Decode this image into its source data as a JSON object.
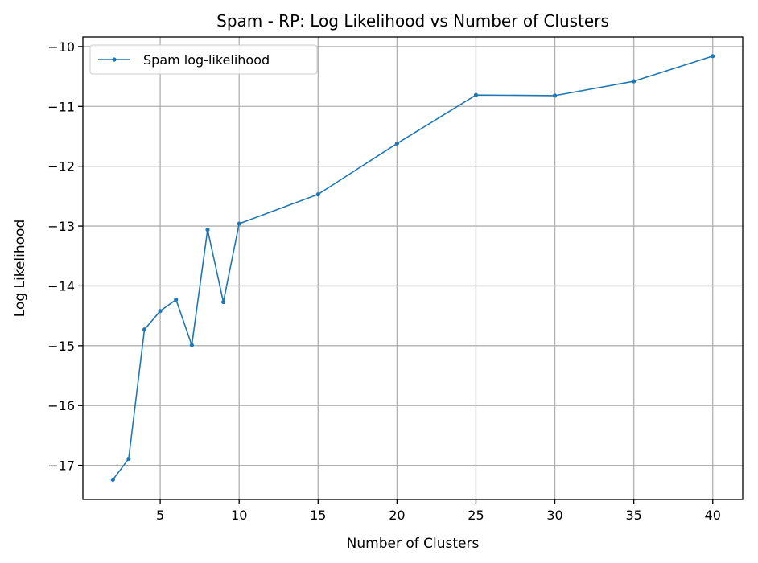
{
  "chart_data": {
    "type": "line",
    "title": "Spam - RP: Log Likelihood vs Number of Clusters",
    "xlabel": "Number of Clusters",
    "ylabel": "Log Likelihood",
    "xlim": [
      0.1,
      41.9
    ],
    "ylim": [
      -17.57,
      -9.84
    ],
    "xticks": [
      5,
      10,
      15,
      20,
      25,
      30,
      35,
      40
    ],
    "xtick_labels": [
      "5",
      "10",
      "15",
      "20",
      "25",
      "30",
      "35",
      "40"
    ],
    "yticks": [
      -17,
      -16,
      -15,
      -14,
      -13,
      -12,
      -11,
      -10
    ],
    "ytick_labels": [
      "−17",
      "−16",
      "−15",
      "−14",
      "−13",
      "−12",
      "−11",
      "−10"
    ],
    "grid": true,
    "legend_position": "top-left",
    "series": [
      {
        "name": "Spam log-likelihood",
        "color": "#1f77b4",
        "x": [
          2,
          3,
          4,
          5,
          6,
          7,
          8,
          9,
          10,
          15,
          20,
          25,
          30,
          35,
          40
        ],
        "y": [
          -17.24,
          -16.89,
          -14.73,
          -14.42,
          -14.23,
          -14.99,
          -13.06,
          -14.27,
          -12.96,
          -12.47,
          -11.62,
          -10.81,
          -10.82,
          -10.58,
          -10.16
        ]
      }
    ]
  }
}
